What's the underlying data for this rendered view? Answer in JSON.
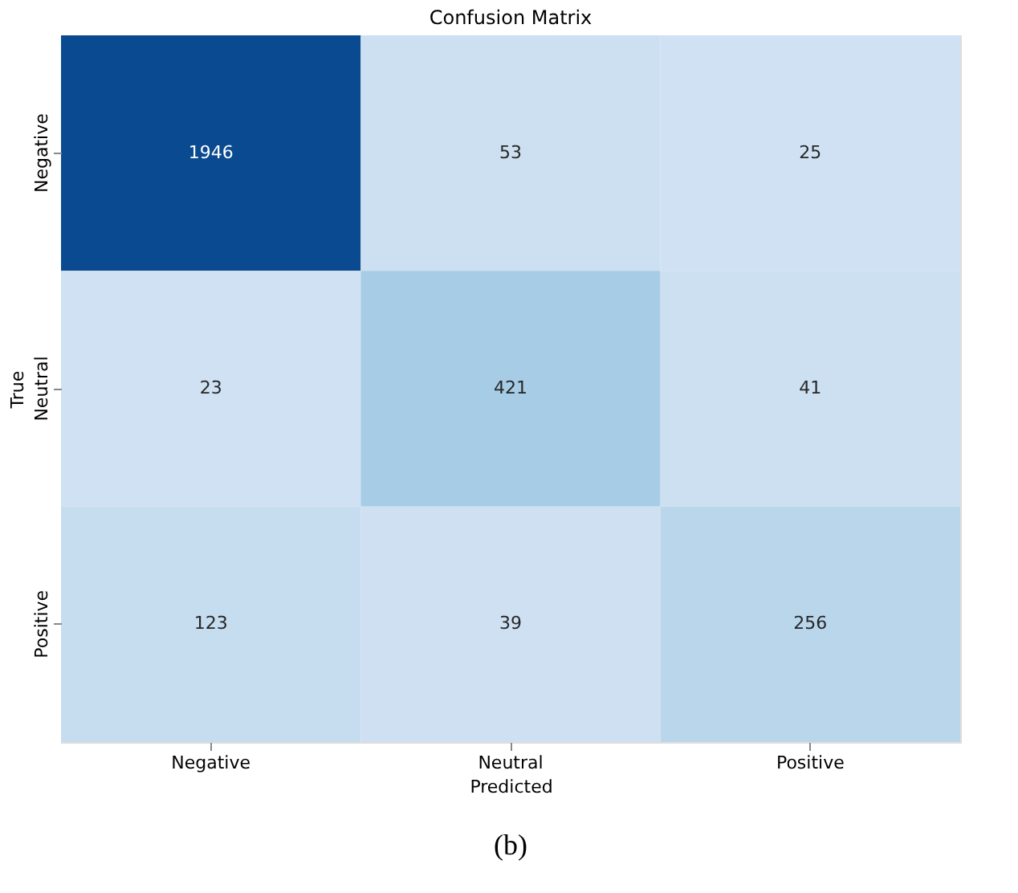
{
  "chart_data": {
    "type": "heatmap",
    "title": "Confusion Matrix",
    "xlabel": "Predicted",
    "ylabel": "True",
    "categories": [
      "Negative",
      "Neutral",
      "Positive"
    ],
    "y_categories": [
      "Negative",
      "Neutral",
      "Positive"
    ],
    "cells": [
      [
        1946,
        53,
        25
      ],
      [
        23,
        421,
        41
      ],
      [
        123,
        39,
        256
      ]
    ],
    "data_labels": true,
    "annotations": [
      "(b)"
    ]
  }
}
